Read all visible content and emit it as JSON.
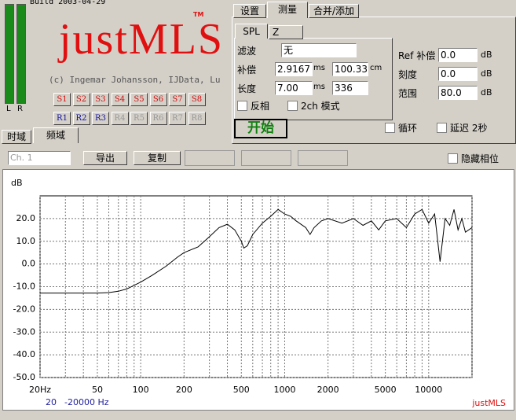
{
  "header": {
    "build": "Build 2003-04-29",
    "logo": "justMLS",
    "trademark": "TM",
    "copyright": "(c) Ingemar Johansson, IJData, Lu",
    "meter_labels": [
      "L",
      "R"
    ]
  },
  "sweep_buttons": [
    "S1",
    "S2",
    "S3",
    "S4",
    "S5",
    "S6",
    "S7",
    "S8"
  ],
  "ref_buttons": [
    "R1",
    "R2",
    "R3",
    "R4",
    "R5",
    "R6",
    "R7",
    "R8"
  ],
  "view_tabs": [
    "时域",
    "频域"
  ],
  "settings": {
    "tabs": [
      "设置",
      "测量",
      "合并/添加"
    ],
    "subtabs": [
      "SPL",
      "Z"
    ],
    "filter_label": "滤波",
    "filter_value": "无",
    "comp_label": "补偿",
    "comp_ms": "2.9167",
    "ms1": "ms",
    "comp_cm": "100.33",
    "cm": "cm",
    "length_label": "长度",
    "length_ms": "7.00",
    "ms2": "ms",
    "length_samples": "336",
    "invert": "反相",
    "two_ch": "2ch 模式",
    "start": "开始",
    "ref_comp_label": "Ref 补偿",
    "ref_comp": "0.0",
    "db1": "dB",
    "scale_label": "刻度",
    "scale": "0.0",
    "db2": "dB",
    "range_label": "范围",
    "range": "80.0",
    "db3": "dB",
    "loop": "循环",
    "delay": "延迟 2秒"
  },
  "toolbar": {
    "channel": "Ch. 1",
    "export": "导出",
    "copy": "复制",
    "hide_phase": "隐藏相位"
  },
  "chart_data": {
    "type": "line",
    "y_label": "dB",
    "log_x": true,
    "grid": true,
    "footer_start": "20",
    "footer_end": "-20000 Hz",
    "watermark": "justMLS",
    "xlim": [
      20,
      20000
    ],
    "ylim": [
      -50,
      30
    ],
    "xticks": [
      {
        "value": 20,
        "label": "20Hz"
      },
      50,
      100,
      200,
      500,
      1000,
      2000,
      5000,
      10000
    ],
    "x_minor_grid": [
      30,
      40,
      60,
      70,
      80,
      90,
      300,
      400,
      600,
      700,
      800,
      900,
      3000,
      4000,
      6000,
      7000,
      8000,
      9000,
      20000
    ],
    "yticks": [
      {
        "value": -50,
        "label": "-50.0"
      },
      {
        "value": -40,
        "label": "-40.0"
      },
      {
        "value": -30,
        "label": "-30.0"
      },
      {
        "value": -20,
        "label": "-20.0"
      },
      {
        "value": -10,
        "label": "-10.0"
      },
      {
        "value": 0,
        "label": "0.0"
      },
      {
        "value": 10,
        "label": "10.0"
      },
      {
        "value": 20,
        "label": "20.0"
      }
    ],
    "series": [
      {
        "color": "#000000",
        "x": [
          20,
          30,
          50,
          60,
          70,
          80,
          100,
          120,
          150,
          180,
          200,
          250,
          300,
          350,
          400,
          450,
          500,
          520,
          550,
          600,
          700,
          800,
          900,
          1000,
          1100,
          1200,
          1400,
          1500,
          1600,
          1800,
          2000,
          2500,
          3000,
          3500,
          4000,
          4500,
          5000,
          6000,
          7000,
          8000,
          9000,
          10000,
          11000,
          12000,
          13000,
          14000,
          15000,
          16000,
          17000,
          18000,
          20000
        ],
        "values": [
          -12.8,
          -12.8,
          -12.8,
          -12.6,
          -12,
          -11,
          -8,
          -5,
          -1,
          3,
          5,
          7.5,
          12,
          16,
          17.5,
          15,
          10,
          7,
          8,
          13,
          18,
          21,
          24,
          22,
          21,
          19,
          16,
          13,
          16,
          19,
          20,
          18,
          20,
          17,
          19,
          15,
          19,
          20,
          16,
          22,
          24,
          18,
          22,
          1,
          20,
          17,
          24,
          15,
          20,
          14,
          16
        ]
      }
    ]
  }
}
